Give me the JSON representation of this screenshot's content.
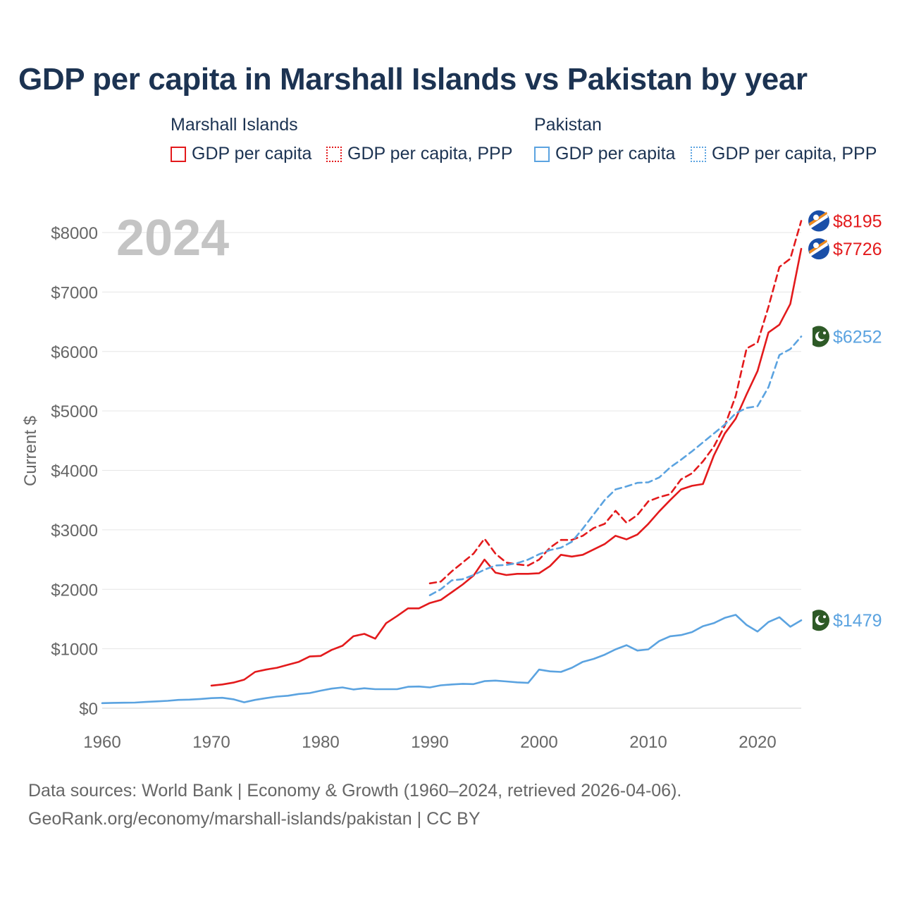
{
  "title": "GDP per capita in Marshall Islands vs Pakistan by year",
  "legend": {
    "groups": [
      {
        "name": "Marshall Islands",
        "items": [
          {
            "label": "GDP per capita",
            "style": "solid"
          },
          {
            "label": "GDP per capita, PPP",
            "style": "dotted"
          }
        ],
        "color": "#e31a1c"
      },
      {
        "name": "Pakistan",
        "items": [
          {
            "label": "GDP per capita",
            "style": "solid"
          },
          {
            "label": "GDP per capita, PPP",
            "style": "dotted"
          }
        ],
        "color": "#5ba3e0"
      }
    ]
  },
  "year_label": "2024",
  "footer": {
    "line1": "Data sources: World Bank | Economy & Growth (1960–2024, retrieved 2026-04-06).",
    "line2": "GeoRank.org/economy/marshall-islands/pakistan | CC BY"
  },
  "colors": {
    "mhl": "#e31a1c",
    "pak": "#5ba3e0",
    "title": "#1c3352",
    "axis_text": "#666666",
    "grid": "#e6e6e6",
    "year": "#c4c4c4"
  },
  "chart_data": {
    "type": "line",
    "title": "GDP per capita in Marshall Islands vs Pakistan by year",
    "xlabel": "",
    "ylabel": "Current $",
    "xlim": [
      1960,
      2024
    ],
    "ylim": [
      0,
      8000
    ],
    "x_ticks": [
      1960,
      1970,
      1980,
      1990,
      2000,
      2010,
      2020
    ],
    "y_ticks": [
      0,
      1000,
      2000,
      3000,
      4000,
      5000,
      6000,
      7000,
      8000
    ],
    "y_tick_labels": [
      "$0",
      "$1000",
      "$2000",
      "$3000",
      "$4000",
      "$5000",
      "$6000",
      "$7000",
      "$8000"
    ],
    "grid": true,
    "series": [
      {
        "name": "Marshall Islands GDP per capita, PPP",
        "country": "mhl",
        "dash": true,
        "end_label": "$8195",
        "x_start": 1990,
        "values": [
          2100,
          2130,
          2300,
          2450,
          2600,
          2850,
          2600,
          2450,
          2420,
          2400,
          2500,
          2700,
          2830,
          2830,
          2900,
          3030,
          3100,
          3320,
          3120,
          3250,
          3480,
          3550,
          3600,
          3850,
          3950,
          4150,
          4400,
          4750,
          5250,
          6050,
          6150,
          6750,
          7420,
          7560,
          8195
        ]
      },
      {
        "name": "Marshall Islands GDP per capita",
        "country": "mhl",
        "dash": false,
        "end_label": "$7726",
        "x_start": 1970,
        "values": [
          380,
          400,
          430,
          480,
          610,
          650,
          680,
          730,
          780,
          870,
          880,
          980,
          1050,
          1210,
          1250,
          1170,
          1430,
          1550,
          1680,
          1680,
          1770,
          1820,
          1950,
          2080,
          2230,
          2500,
          2280,
          2240,
          2260,
          2260,
          2270,
          2390,
          2580,
          2550,
          2580,
          2670,
          2760,
          2900,
          2840,
          2920,
          3100,
          3310,
          3500,
          3680,
          3740,
          3770,
          4250,
          4620,
          4870,
          5280,
          5670,
          6320,
          6450,
          6800,
          7726
        ]
      },
      {
        "name": "Pakistan GDP per capita, PPP",
        "country": "pak",
        "dash": true,
        "end_label": "$6252",
        "x_start": 1990,
        "values": [
          1900,
          2000,
          2150,
          2170,
          2240,
          2330,
          2400,
          2410,
          2440,
          2500,
          2590,
          2660,
          2700,
          2800,
          3020,
          3260,
          3500,
          3680,
          3730,
          3790,
          3800,
          3880,
          4050,
          4180,
          4320,
          4470,
          4620,
          4770,
          4960,
          5050,
          5080,
          5400,
          5940,
          6040,
          6252
        ]
      },
      {
        "name": "Pakistan GDP per capita",
        "country": "pak",
        "dash": false,
        "end_label": "$1479",
        "x_start": 1960,
        "values": [
          85,
          90,
          92,
          95,
          105,
          115,
          125,
          140,
          145,
          155,
          170,
          175,
          150,
          100,
          140,
          170,
          195,
          210,
          240,
          255,
          295,
          330,
          350,
          315,
          335,
          320,
          320,
          320,
          360,
          365,
          350,
          385,
          400,
          410,
          405,
          455,
          465,
          450,
          435,
          425,
          650,
          620,
          610,
          680,
          780,
          830,
          900,
          990,
          1060,
          970,
          990,
          1130,
          1210,
          1230,
          1280,
          1380,
          1430,
          1520,
          1570,
          1400,
          1290,
          1450,
          1530,
          1370,
          1479
        ]
      }
    ]
  }
}
